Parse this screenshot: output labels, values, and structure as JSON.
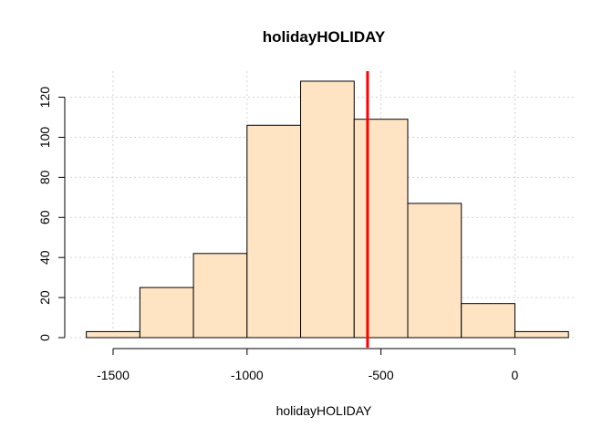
{
  "chart_data": {
    "type": "histogram",
    "title": "holidayHOLIDAY",
    "xlabel": "holidayHOLIDAY",
    "ylabel": "",
    "bins": [
      {
        "start": -1600,
        "end": -1400,
        "count": 3
      },
      {
        "start": -1400,
        "end": -1200,
        "count": 25
      },
      {
        "start": -1200,
        "end": -1000,
        "count": 42
      },
      {
        "start": -1000,
        "end": -800,
        "count": 106
      },
      {
        "start": -800,
        "end": -600,
        "count": 128
      },
      {
        "start": -600,
        "end": -400,
        "count": 109
      },
      {
        "start": -400,
        "end": -200,
        "count": 67
      },
      {
        "start": -200,
        "end": 0,
        "count": 17
      },
      {
        "start": 0,
        "end": 200,
        "count": 3
      }
    ],
    "reference_line": {
      "x": -550,
      "color": "#ff0000"
    },
    "xticks": [
      -1500,
      -1000,
      -500,
      0
    ],
    "xtick_labels": [
      "-1500",
      "-1000",
      "-500",
      "0"
    ],
    "yticks": [
      0,
      20,
      40,
      60,
      80,
      100,
      120
    ],
    "ytick_labels": [
      "0",
      "20",
      "40",
      "60",
      "80",
      "100",
      "120"
    ],
    "xlim": [
      -1660,
      230
    ],
    "ylim": [
      0,
      133
    ],
    "grid": true,
    "bar_color": "#ffe4c4"
  }
}
